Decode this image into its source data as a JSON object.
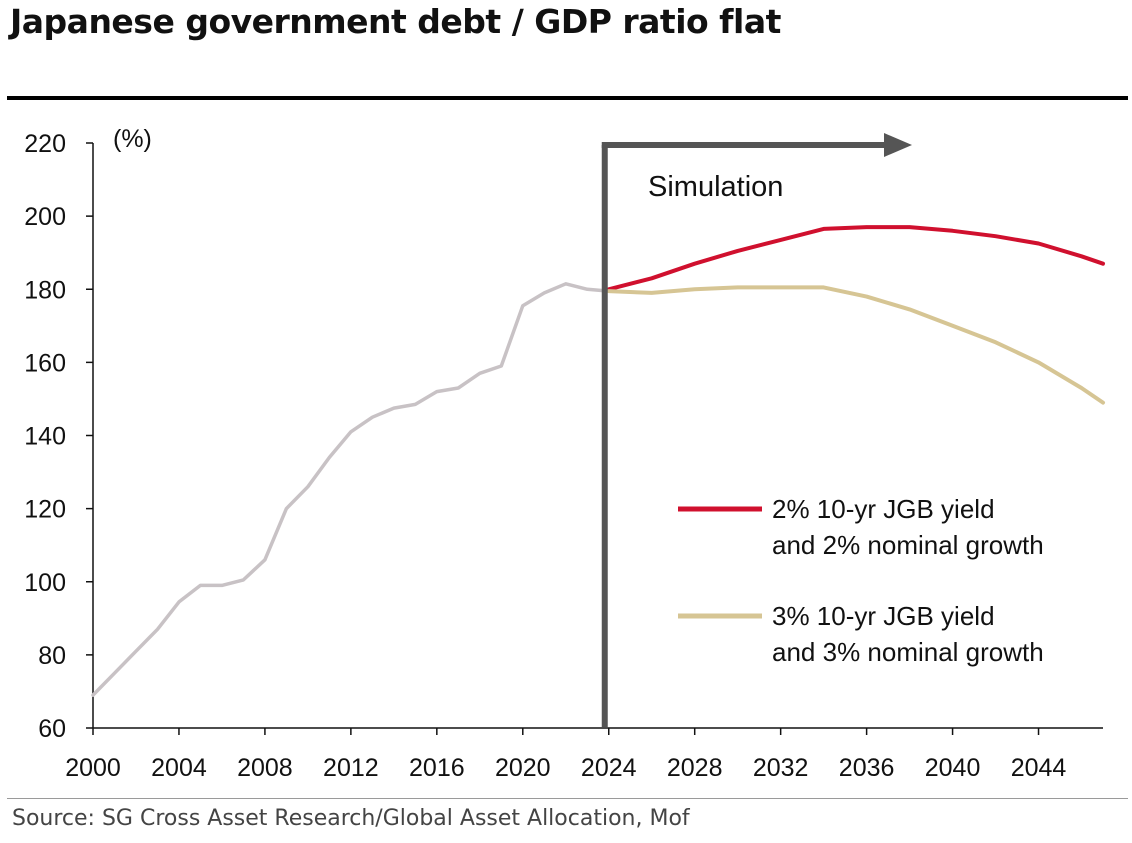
{
  "title": "Japanese government debt / GDP ratio flat",
  "source": "Source: SG Cross Asset Research/Global Asset Allocation, Mof",
  "chart_data": {
    "type": "line",
    "ylabel": "(%)",
    "xlim": [
      2000,
      2047
    ],
    "ylim": [
      60,
      220
    ],
    "y_ticks": [
      60,
      80,
      100,
      120,
      140,
      160,
      180,
      200,
      220
    ],
    "x_ticks": [
      2000,
      2004,
      2008,
      2012,
      2016,
      2020,
      2024,
      2028,
      2032,
      2036,
      2040,
      2044
    ],
    "annotation": "Simulation",
    "simulation_start": 2024,
    "legend_position": "right",
    "series": [
      {
        "role": "history",
        "color": "#c8c2c5",
        "x": [
          2000,
          2001,
          2002,
          2003,
          2004,
          2005,
          2006,
          2007,
          2008,
          2009,
          2010,
          2011,
          2012,
          2013,
          2014,
          2015,
          2016,
          2017,
          2018,
          2019,
          2020,
          2021,
          2022,
          2023,
          2024
        ],
        "y": [
          69,
          75,
          81,
          87,
          94.5,
          99,
          99,
          100.5,
          106,
          120,
          126,
          134,
          141,
          145,
          147.5,
          148.5,
          152,
          153,
          157,
          159,
          175.5,
          179,
          181.5,
          180,
          179.5
        ]
      },
      {
        "name": "2% 10-yr JGB yield and 2% nominal growth",
        "legend_lines": [
          "2% 10-yr JGB yield",
          "and 2% nominal growth"
        ],
        "color": "#d0102e",
        "x": [
          2024,
          2026,
          2028,
          2030,
          2032,
          2034,
          2036,
          2038,
          2040,
          2042,
          2044,
          2046,
          2047
        ],
        "y": [
          180,
          183,
          187,
          190.5,
          193.5,
          196.5,
          197,
          197,
          196,
          194.5,
          192.5,
          189,
          187
        ]
      },
      {
        "name": "3% 10-yr JGB yield and 3% nominal growth",
        "legend_lines": [
          "3% 10-yr JGB yield",
          "and 3% nominal growth"
        ],
        "color": "#d6c594",
        "x": [
          2024,
          2026,
          2028,
          2030,
          2032,
          2034,
          2036,
          2038,
          2040,
          2042,
          2044,
          2046,
          2047
        ],
        "y": [
          179.5,
          179,
          180,
          180.5,
          180.5,
          180.5,
          178,
          174.5,
          170,
          165.5,
          160,
          153,
          149
        ]
      }
    ]
  }
}
